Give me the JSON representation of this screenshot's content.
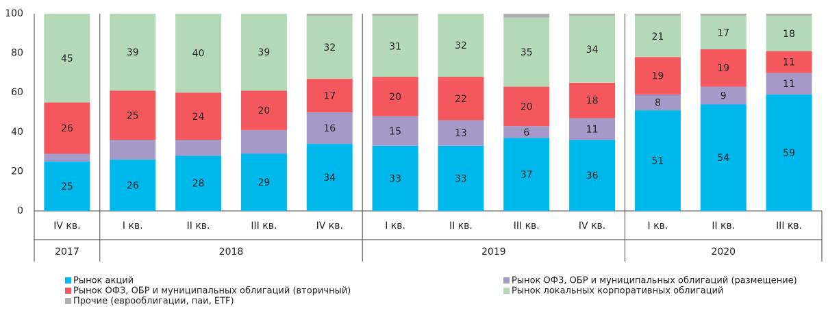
{
  "chart_data": {
    "type": "stacked_bar",
    "categories": [
      "IV кв.",
      "I кв.",
      "II кв.",
      "III кв.",
      "IV кв.",
      "I кв.",
      "II кв.",
      "III кв.",
      "IV кв.",
      "I кв.",
      "II кв.",
      "III кв."
    ],
    "groups": [
      {
        "label": "2017",
        "span": 1
      },
      {
        "label": "2018",
        "span": 4
      },
      {
        "label": "2019",
        "span": 4
      },
      {
        "label": "2020",
        "span": 3
      }
    ],
    "ylim": [
      0,
      100
    ],
    "yticks": [
      0,
      20,
      40,
      60,
      80,
      100
    ],
    "series": [
      {
        "name": "Рынок акций",
        "color": "#00b9ec",
        "labels": true,
        "values": [
          25,
          26,
          28,
          29,
          34,
          33,
          33,
          37,
          36,
          51,
          54,
          59
        ]
      },
      {
        "name": "Рынок ОФЗ, ОБР и муниципальных облигаций (размещение)",
        "color": "#a59ac7",
        "values": [
          4,
          10,
          8,
          12,
          16,
          15,
          13,
          6,
          11,
          8,
          9,
          11
        ],
        "value_labels": [
          null,
          null,
          null,
          null,
          "16",
          "15",
          "13",
          "6",
          "11",
          "8",
          "9",
          "11"
        ]
      },
      {
        "name": "Рынок ОФЗ, ОБР и муниципальных облигаций (вторичный)",
        "color": "#f4585c",
        "labels": true,
        "values": [
          26,
          25,
          24,
          20,
          17,
          20,
          22,
          20,
          18,
          19,
          19,
          11
        ]
      },
      {
        "name": "Рынок локальных корпоративных облигаций",
        "color": "#b3d9b8",
        "labels": true,
        "values": [
          45,
          39,
          40,
          39,
          32,
          31,
          32,
          35,
          34,
          21,
          17,
          18
        ]
      },
      {
        "name": "Прочие (еврооблигации, паи, ETF)",
        "color": "#b1b1b1",
        "values": [
          0,
          0,
          0,
          0,
          1,
          1,
          0,
          2,
          1,
          1,
          1,
          1
        ]
      }
    ]
  }
}
